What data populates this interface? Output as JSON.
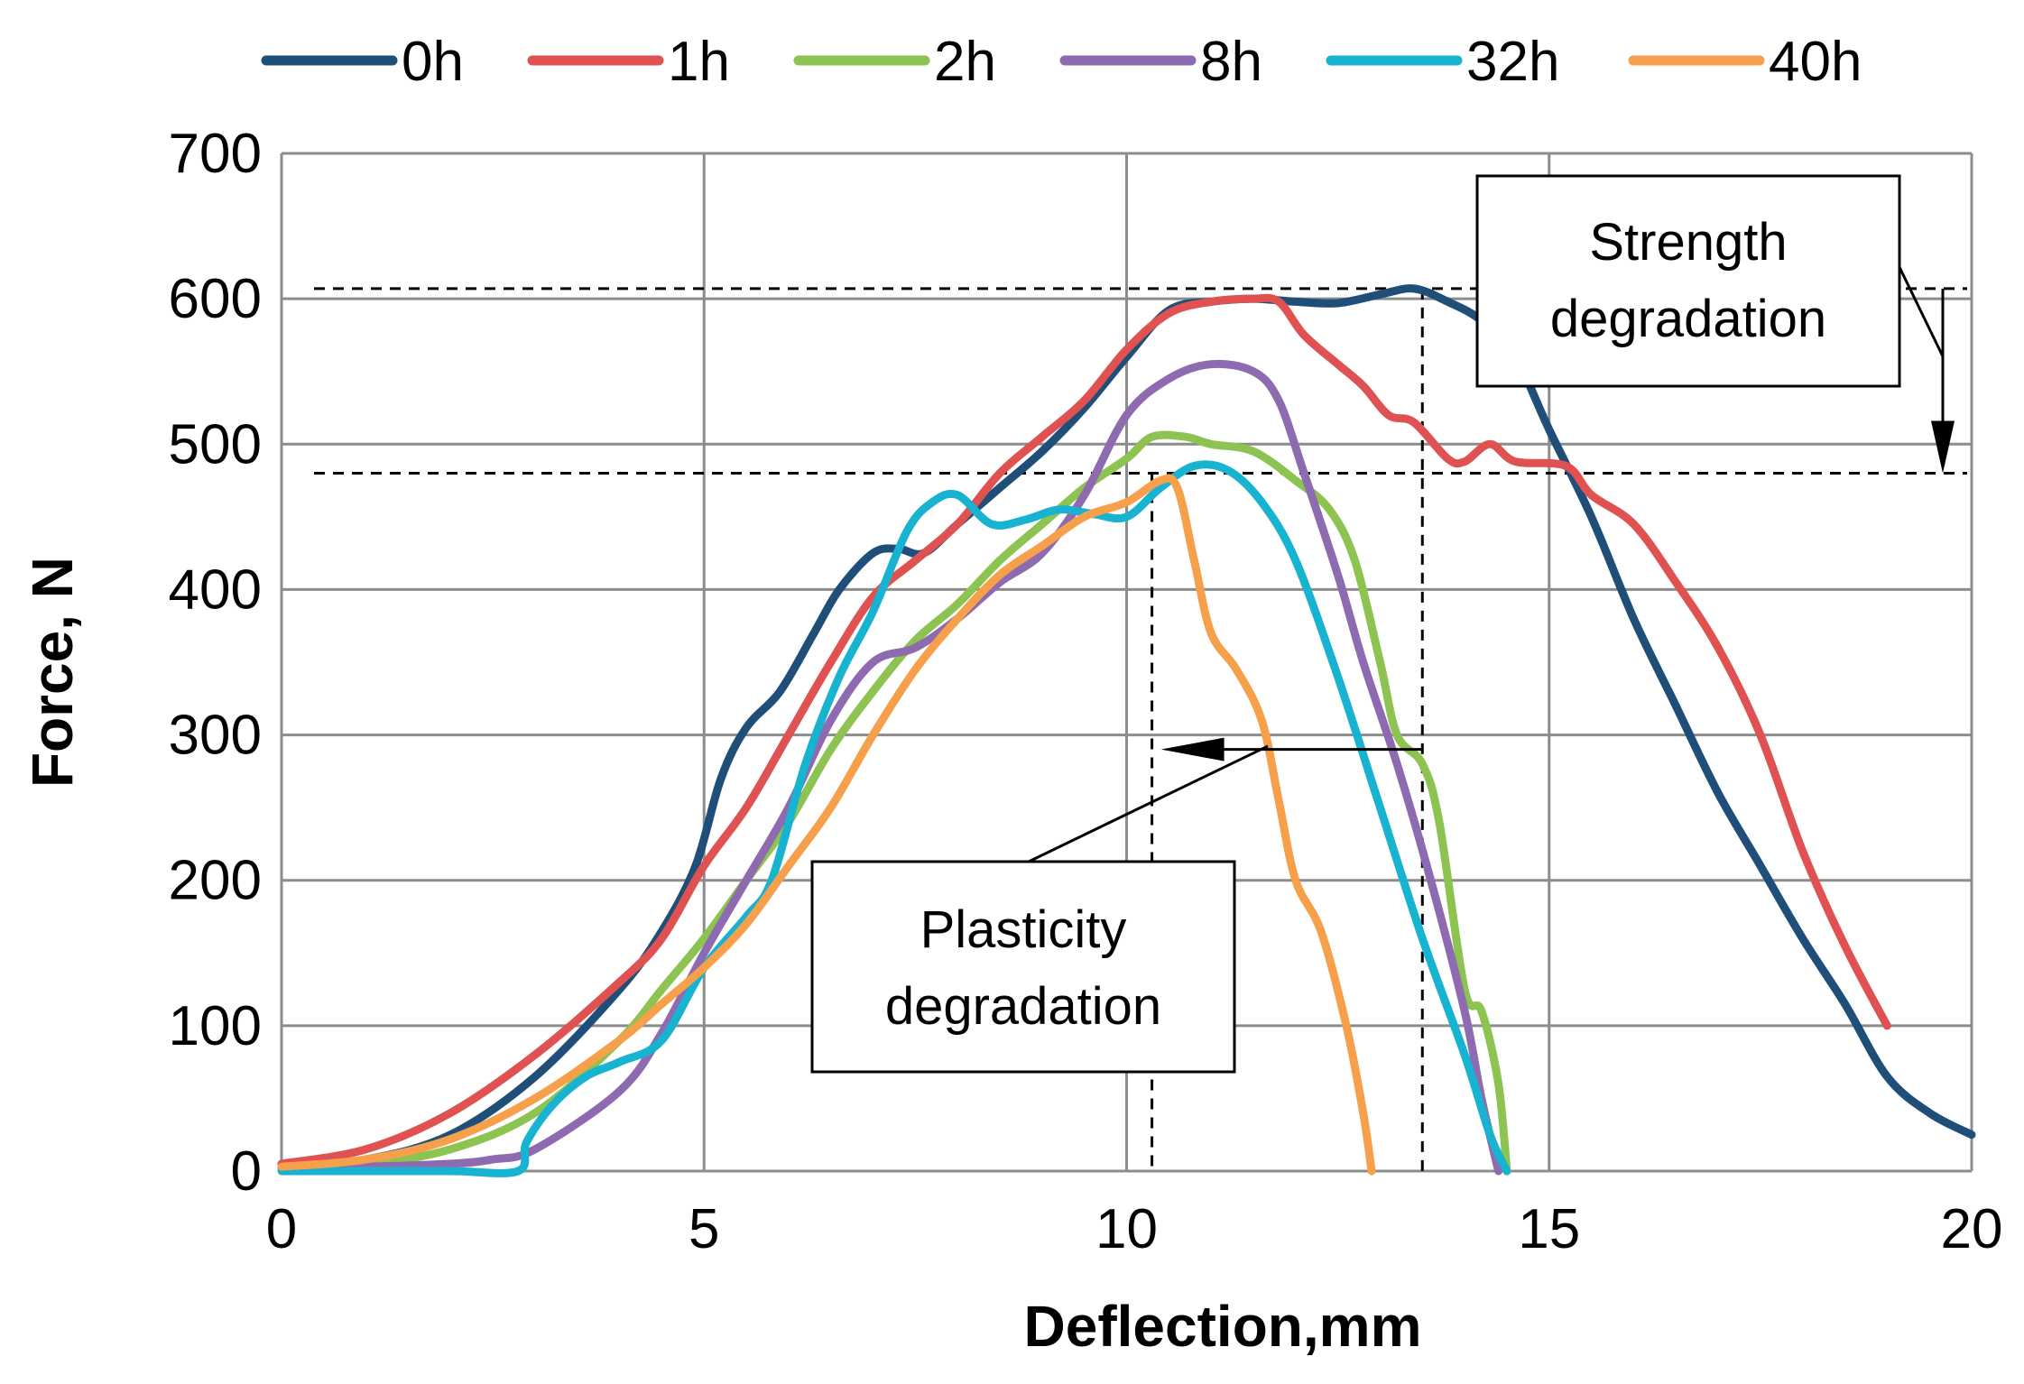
{
  "chart_data": {
    "type": "line",
    "title": "",
    "xlabel": "Deflection,mm",
    "ylabel": "Force, N",
    "xlim": [
      0,
      20
    ],
    "ylim": [
      0,
      700
    ],
    "xticks": [
      0,
      5,
      10,
      15,
      20
    ],
    "yticks": [
      0,
      100,
      200,
      300,
      400,
      500,
      600,
      700
    ],
    "grid": true,
    "legend_position": "top",
    "series": [
      {
        "name": "0h",
        "color": "#1f4e79",
        "points": [
          [
            0,
            3
          ],
          [
            1,
            8
          ],
          [
            2,
            25
          ],
          [
            3,
            65
          ],
          [
            4,
            125
          ],
          [
            4.5,
            165
          ],
          [
            4.9,
            210
          ],
          [
            5.2,
            270
          ],
          [
            5.5,
            305
          ],
          [
            5.9,
            330
          ],
          [
            6.3,
            370
          ],
          [
            6.6,
            400
          ],
          [
            7,
            425
          ],
          [
            7.3,
            428
          ],
          [
            7.6,
            425
          ],
          [
            8,
            445
          ],
          [
            8.5,
            470
          ],
          [
            9,
            495
          ],
          [
            9.5,
            525
          ],
          [
            10,
            560
          ],
          [
            10.5,
            592
          ],
          [
            11,
            598
          ],
          [
            11.5,
            600
          ],
          [
            12,
            598
          ],
          [
            12.5,
            597
          ],
          [
            13,
            603
          ],
          [
            13.4,
            607
          ],
          [
            13.8,
            598
          ],
          [
            14.2,
            585
          ],
          [
            14.6,
            560
          ],
          [
            15,
            510
          ],
          [
            15.5,
            450
          ],
          [
            16,
            380
          ],
          [
            16.5,
            320
          ],
          [
            17,
            260
          ],
          [
            17.5,
            210
          ],
          [
            18,
            160
          ],
          [
            18.5,
            115
          ],
          [
            19,
            65
          ],
          [
            19.5,
            40
          ],
          [
            20,
            25
          ]
        ]
      },
      {
        "name": "1h",
        "color": "#e05252",
        "points": [
          [
            0,
            5
          ],
          [
            1,
            15
          ],
          [
            2,
            40
          ],
          [
            3,
            80
          ],
          [
            4,
            130
          ],
          [
            4.5,
            160
          ],
          [
            5,
            210
          ],
          [
            5.5,
            250
          ],
          [
            6,
            300
          ],
          [
            6.5,
            350
          ],
          [
            7,
            395
          ],
          [
            7.5,
            420
          ],
          [
            8,
            445
          ],
          [
            8.5,
            480
          ],
          [
            9,
            505
          ],
          [
            9.5,
            530
          ],
          [
            10,
            565
          ],
          [
            10.5,
            590
          ],
          [
            11,
            598
          ],
          [
            11.5,
            600
          ],
          [
            11.8,
            598
          ],
          [
            12.1,
            575
          ],
          [
            12.5,
            555
          ],
          [
            12.8,
            540
          ],
          [
            13.1,
            520
          ],
          [
            13.4,
            515
          ],
          [
            13.8,
            490
          ],
          [
            14,
            488
          ],
          [
            14.3,
            500
          ],
          [
            14.6,
            488
          ],
          [
            15.2,
            485
          ],
          [
            15.5,
            465
          ],
          [
            16,
            445
          ],
          [
            16.5,
            405
          ],
          [
            17,
            360
          ],
          [
            17.5,
            300
          ],
          [
            18,
            220
          ],
          [
            18.5,
            155
          ],
          [
            19,
            100
          ]
        ]
      },
      {
        "name": "2h",
        "color": "#8dc350",
        "points": [
          [
            0,
            2
          ],
          [
            1,
            5
          ],
          [
            2,
            15
          ],
          [
            3,
            40
          ],
          [
            4,
            90
          ],
          [
            4.5,
            125
          ],
          [
            5,
            160
          ],
          [
            5.5,
            200
          ],
          [
            6,
            240
          ],
          [
            6.5,
            290
          ],
          [
            7,
            330
          ],
          [
            7.5,
            365
          ],
          [
            8,
            390
          ],
          [
            8.5,
            420
          ],
          [
            9,
            445
          ],
          [
            9.5,
            470
          ],
          [
            10,
            490
          ],
          [
            10.3,
            505
          ],
          [
            10.7,
            505
          ],
          [
            11,
            500
          ],
          [
            11.5,
            495
          ],
          [
            12,
            475
          ],
          [
            12.4,
            455
          ],
          [
            12.7,
            420
          ],
          [
            13,
            350
          ],
          [
            13.2,
            300
          ],
          [
            13.5,
            280
          ],
          [
            13.7,
            240
          ],
          [
            14,
            125
          ],
          [
            14.2,
            110
          ],
          [
            14.4,
            60
          ],
          [
            14.5,
            0
          ]
        ]
      },
      {
        "name": "8h",
        "color": "#8e6bb0",
        "points": [
          [
            0,
            2
          ],
          [
            1,
            3
          ],
          [
            2,
            5
          ],
          [
            2.5,
            8
          ],
          [
            3,
            15
          ],
          [
            4,
            55
          ],
          [
            4.5,
            95
          ],
          [
            5,
            150
          ],
          [
            5.5,
            200
          ],
          [
            6,
            250
          ],
          [
            6.5,
            310
          ],
          [
            7,
            350
          ],
          [
            7.5,
            360
          ],
          [
            8,
            380
          ],
          [
            8.5,
            405
          ],
          [
            9,
            425
          ],
          [
            9.5,
            465
          ],
          [
            10,
            520
          ],
          [
            10.5,
            545
          ],
          [
            11,
            555
          ],
          [
            11.5,
            550
          ],
          [
            11.8,
            530
          ],
          [
            12.1,
            480
          ],
          [
            12.5,
            410
          ],
          [
            12.8,
            350
          ],
          [
            13.2,
            280
          ],
          [
            13.6,
            200
          ],
          [
            14,
            110
          ],
          [
            14.2,
            50
          ],
          [
            14.4,
            0
          ]
        ]
      },
      {
        "name": "32h",
        "color": "#17b3d1",
        "points": [
          [
            0,
            0
          ],
          [
            1,
            0
          ],
          [
            2,
            0
          ],
          [
            2.8,
            0
          ],
          [
            2.9,
            20
          ],
          [
            3.2,
            45
          ],
          [
            3.6,
            65
          ],
          [
            4,
            75
          ],
          [
            4.5,
            90
          ],
          [
            5,
            140
          ],
          [
            5.5,
            175
          ],
          [
            5.8,
            200
          ],
          [
            6.2,
            280
          ],
          [
            6.6,
            340
          ],
          [
            7,
            385
          ],
          [
            7.4,
            440
          ],
          [
            7.7,
            460
          ],
          [
            8,
            465
          ],
          [
            8.4,
            445
          ],
          [
            8.8,
            448
          ],
          [
            9.2,
            455
          ],
          [
            9.6,
            452
          ],
          [
            10,
            450
          ],
          [
            10.4,
            470
          ],
          [
            10.8,
            485
          ],
          [
            11.2,
            482
          ],
          [
            11.6,
            460
          ],
          [
            12,
            420
          ],
          [
            12.5,
            340
          ],
          [
            13,
            250
          ],
          [
            13.5,
            160
          ],
          [
            14,
            80
          ],
          [
            14.3,
            25
          ],
          [
            14.5,
            0
          ]
        ]
      },
      {
        "name": "40h",
        "color": "#f7a04b",
        "points": [
          [
            0,
            3
          ],
          [
            1,
            8
          ],
          [
            2,
            22
          ],
          [
            3,
            50
          ],
          [
            4,
            90
          ],
          [
            4.5,
            115
          ],
          [
            5,
            140
          ],
          [
            5.5,
            170
          ],
          [
            6,
            210
          ],
          [
            6.5,
            250
          ],
          [
            7,
            300
          ],
          [
            7.5,
            345
          ],
          [
            8,
            380
          ],
          [
            8.5,
            410
          ],
          [
            9,
            430
          ],
          [
            9.5,
            450
          ],
          [
            10,
            460
          ],
          [
            10.4,
            475
          ],
          [
            10.6,
            470
          ],
          [
            10.8,
            420
          ],
          [
            11,
            370
          ],
          [
            11.3,
            345
          ],
          [
            11.6,
            310
          ],
          [
            11.8,
            255
          ],
          [
            12,
            200
          ],
          [
            12.3,
            165
          ],
          [
            12.6,
            100
          ],
          [
            12.8,
            40
          ],
          [
            12.9,
            0
          ]
        ]
      }
    ],
    "annotations": [
      {
        "label": "Strength degradation",
        "text_lines": [
          "Strength",
          "degradation"
        ],
        "from_force": 607,
        "to_force": 480,
        "x_deflection": 20.4
      },
      {
        "label": "Plasticity degradation",
        "text_lines": [
          "Plasticity",
          "degradation"
        ],
        "from_deflection": 13.5,
        "to_deflection": 10.3,
        "at_force": 290
      }
    ],
    "reference_lines": [
      {
        "orientation": "horizontal",
        "value": 607
      },
      {
        "orientation": "horizontal",
        "value": 480
      },
      {
        "orientation": "vertical",
        "value": 13.5
      },
      {
        "orientation": "vertical",
        "value": 10.3
      }
    ]
  }
}
